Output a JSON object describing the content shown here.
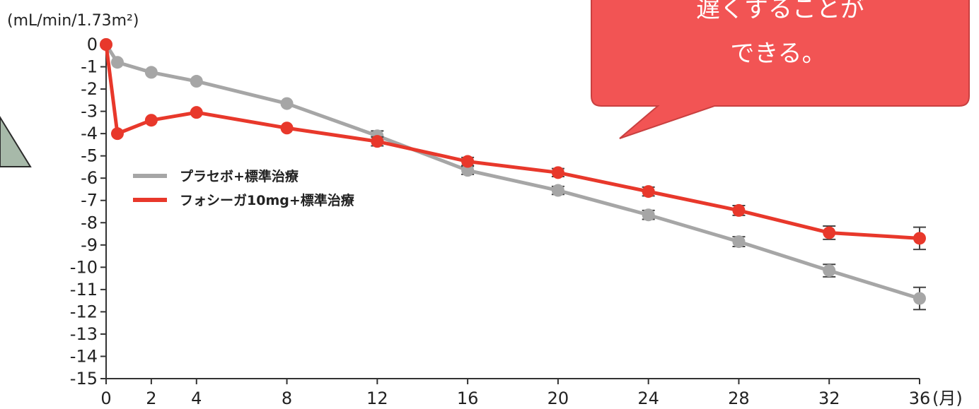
{
  "chart_data": {
    "type": "line",
    "title": "",
    "ylabel": "(mL/min/1.73m²)",
    "xlabel": "(月)",
    "xlim": [
      0,
      36
    ],
    "ylim": [
      -15,
      0
    ],
    "x_ticks": [
      0,
      2,
      4,
      8,
      12,
      16,
      20,
      24,
      28,
      32,
      36
    ],
    "y_ticks": [
      0,
      -1,
      -2,
      -3,
      -4,
      -5,
      -6,
      -7,
      -8,
      -9,
      -10,
      -11,
      -12,
      -13,
      -14,
      -15
    ],
    "grid": false,
    "legend_position": "left",
    "series": [
      {
        "name": "プラセボ+標準治療",
        "color": "#a6a6a6",
        "points": [
          {
            "x": 0,
            "y": 0
          },
          {
            "x": 0.5,
            "y": -0.8
          },
          {
            "x": 2,
            "y": -1.25
          },
          {
            "x": 4,
            "y": -1.65
          },
          {
            "x": 8,
            "y": -2.65
          },
          {
            "x": 12,
            "y": -4.1,
            "err": 0.22
          },
          {
            "x": 16,
            "y": -5.65,
            "err": 0.18
          },
          {
            "x": 20,
            "y": -6.55,
            "err": 0.18
          },
          {
            "x": 24,
            "y": -7.65,
            "err": 0.2
          },
          {
            "x": 28,
            "y": -8.85,
            "err": 0.22
          },
          {
            "x": 32,
            "y": -10.15,
            "err": 0.28
          },
          {
            "x": 36,
            "y": -11.4,
            "err": 0.5
          }
        ]
      },
      {
        "name": "フォシーガ10mg+標準治療",
        "color": "#e8382b",
        "points": [
          {
            "x": 0,
            "y": 0
          },
          {
            "x": 0.5,
            "y": -4.0
          },
          {
            "x": 2,
            "y": -3.4
          },
          {
            "x": 4,
            "y": -3.05
          },
          {
            "x": 8,
            "y": -3.75
          },
          {
            "x": 12,
            "y": -4.35,
            "err": 0.2
          },
          {
            "x": 16,
            "y": -5.25,
            "err": 0.18
          },
          {
            "x": 20,
            "y": -5.75,
            "err": 0.18
          },
          {
            "x": 24,
            "y": -6.6,
            "err": 0.2
          },
          {
            "x": 28,
            "y": -7.45,
            "err": 0.22
          },
          {
            "x": 32,
            "y": -8.45,
            "err": 0.3
          },
          {
            "x": 36,
            "y": -8.7,
            "err": 0.5
          }
        ]
      }
    ]
  },
  "callout": {
    "line1": "遅くすることが",
    "line2": "できる。",
    "fill": "#f25454",
    "border": "#c94040"
  },
  "left_shape": {
    "fill": "#a7b9a9",
    "stroke": "#2b2b2b"
  }
}
